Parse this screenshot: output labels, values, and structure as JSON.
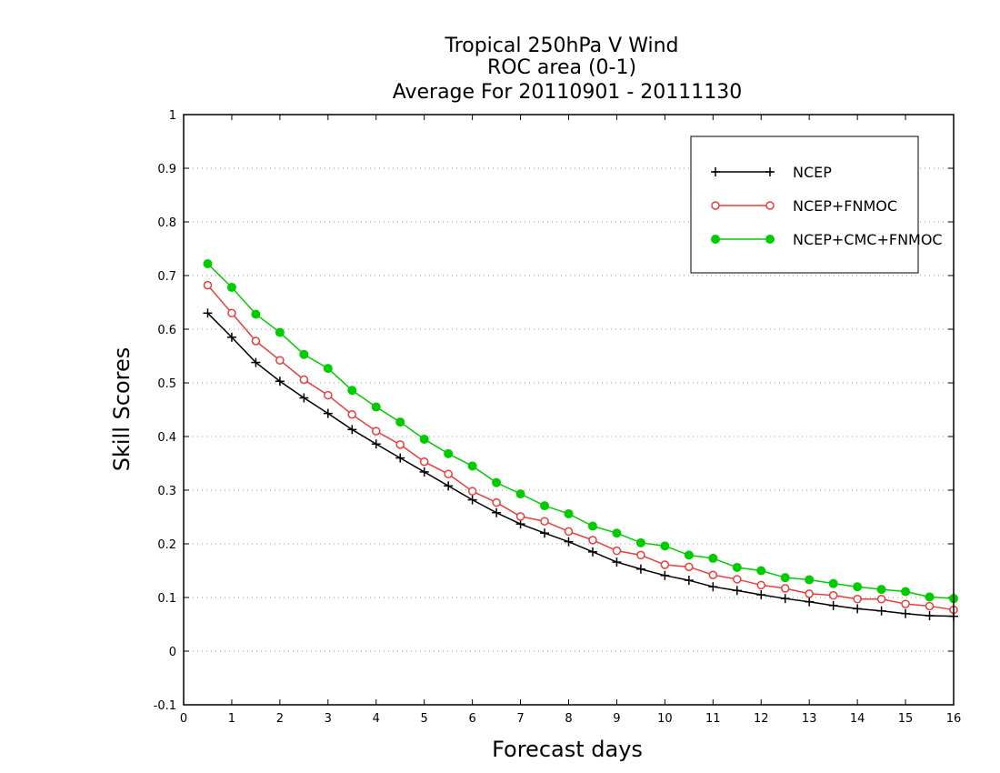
{
  "chart_data": {
    "type": "line",
    "title": [
      "Tropical 250hPa V Wind",
      "ROC area (0-1)",
      "Average For 20110901 - 20111130"
    ],
    "xlabel": "Forecast days",
    "ylabel": "Skill Scores",
    "xlim": [
      0,
      16
    ],
    "ylim": [
      -0.1,
      1
    ],
    "xticks": [
      0,
      1,
      2,
      3,
      4,
      5,
      6,
      7,
      8,
      9,
      10,
      11,
      12,
      13,
      14,
      15,
      16
    ],
    "xtick_labels": [
      "0",
      "1",
      "2",
      "3",
      "4",
      "5",
      "6",
      "7",
      "8",
      "9",
      "10",
      "11",
      "12",
      "13",
      "14",
      "15",
      "16"
    ],
    "yticks": [
      -0.1,
      0,
      0.1,
      0.2,
      0.3,
      0.4,
      0.5,
      0.6,
      0.7,
      0.8,
      0.9,
      1
    ],
    "ytick_labels": [
      "-0.1",
      "0",
      "0.1",
      "0.2",
      "0.3",
      "0.4",
      "0.5",
      "0.6",
      "0.7",
      "0.8",
      "0.9",
      "1"
    ],
    "grid": "horizontal dotted",
    "legend_position": "top-right",
    "x": [
      0.5,
      1,
      1.5,
      2,
      2.5,
      3,
      3.5,
      4,
      4.5,
      5,
      5.5,
      6,
      6.5,
      7,
      7.5,
      8,
      8.5,
      9,
      9.5,
      10,
      10.5,
      11,
      11.5,
      12,
      12.5,
      13,
      13.5,
      14,
      14.5,
      15,
      15.5,
      16
    ],
    "series": [
      {
        "name": "NCEP",
        "color": "#000000",
        "marker": "plus",
        "values": [
          0.63,
          0.585,
          0.538,
          0.503,
          0.472,
          0.443,
          0.413,
          0.386,
          0.36,
          0.334,
          0.308,
          0.282,
          0.258,
          0.237,
          0.22,
          0.204,
          0.185,
          0.166,
          0.153,
          0.141,
          0.132,
          0.12,
          0.113,
          0.105,
          0.098,
          0.092,
          0.085,
          0.079,
          0.075,
          0.07,
          0.066,
          0.065
        ]
      },
      {
        "name": "NCEP+FNMOC",
        "color": "#ee3b3b",
        "marker": "open-circle",
        "values": [
          0.682,
          0.63,
          0.578,
          0.542,
          0.506,
          0.477,
          0.441,
          0.41,
          0.385,
          0.353,
          0.33,
          0.298,
          0.277,
          0.251,
          0.242,
          0.223,
          0.207,
          0.187,
          0.179,
          0.161,
          0.157,
          0.142,
          0.134,
          0.123,
          0.117,
          0.107,
          0.104,
          0.097,
          0.097,
          0.088,
          0.084,
          0.077
        ]
      },
      {
        "name": "NCEP+CMC+FNMOC",
        "color": "#00cc00",
        "marker": "filled-circle",
        "values": [
          0.722,
          0.678,
          0.628,
          0.594,
          0.553,
          0.527,
          0.486,
          0.455,
          0.427,
          0.395,
          0.368,
          0.345,
          0.314,
          0.293,
          0.271,
          0.256,
          0.233,
          0.22,
          0.202,
          0.196,
          0.179,
          0.173,
          0.156,
          0.15,
          0.137,
          0.133,
          0.126,
          0.12,
          0.115,
          0.111,
          0.101,
          0.098
        ]
      }
    ]
  }
}
